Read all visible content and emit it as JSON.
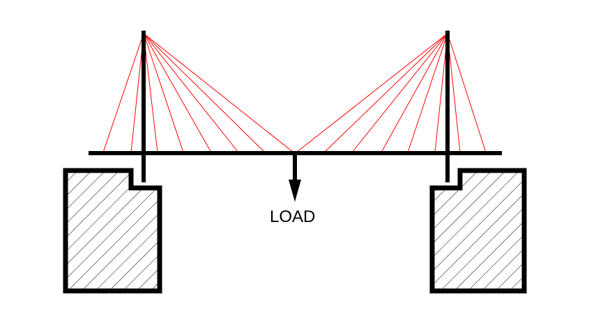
{
  "diagram": {
    "load_label": "LOAD",
    "colors": {
      "structure": "#000000",
      "cables": "#ff0000",
      "background": "#ffffff"
    }
  }
}
